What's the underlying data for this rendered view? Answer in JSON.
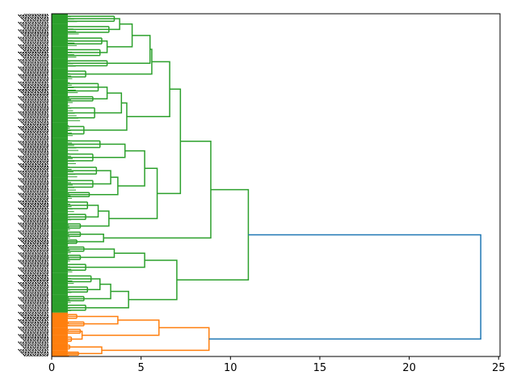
{
  "chart_data": {
    "type": "dendrogram",
    "title": "",
    "xlabel": "",
    "ylabel": "",
    "orientation": "right",
    "xlim": [
      0,
      25.08
    ],
    "xticks": [
      0,
      5,
      10,
      15,
      20,
      25
    ],
    "xtick_labels": [
      "0",
      "5",
      "10",
      "15",
      "20",
      "25"
    ],
    "leaf_labels_note": "illegible",
    "colors": {
      "above_threshold": "#1f77b4",
      "cluster_1": "#2ca02c",
      "cluster_2": "#ff7f0e",
      "leaf_label": "#000000"
    },
    "tree": {
      "h": 24.0,
      "color": "above_threshold",
      "c": [
        {
          "h": 11.0,
          "color": "cluster_1",
          "c": [
            {
              "h": 8.9,
              "c": [
                {
                  "h": 7.2,
                  "c": [
                    {
                      "h": 6.6,
                      "c": [
                        {
                          "h": 5.6,
                          "c": [
                            {
                              "h": 5.5,
                              "c": [
                                {
                                  "h": 4.5,
                                  "c": [
                                    {
                                      "h": 3.8,
                                      "c": [
                                        {
                                          "n": 12,
                                          "h": 3.5
                                        },
                                        {
                                          "n": 14,
                                          "h": 3.2
                                        }
                                      ]
                                    },
                                    {
                                      "h": 3.1,
                                      "c": [
                                        {
                                          "n": 14,
                                          "h": 2.8
                                        },
                                        {
                                          "n": 14,
                                          "h": 2.7
                                        }
                                      ]
                                    }
                                  ]
                                },
                                {
                                  "n": 12,
                                  "h": 3.1
                                }
                              ]
                            },
                            {
                              "n": 14,
                              "h": 1.9
                            }
                          ]
                        },
                        {
                          "h": 4.2,
                          "c": [
                            {
                              "h": 3.9,
                              "c": [
                                {
                                  "h": 3.1,
                                  "c": [
                                    {
                                      "n": 18,
                                      "h": 2.6
                                    },
                                    {
                                      "n": 10,
                                      "h": 2.3
                                    }
                                  ]
                                },
                                {
                                  "n": 24,
                                  "h": 2.4
                                }
                              ]
                            },
                            {
                              "n": 18,
                              "h": 1.8
                            }
                          ]
                        }
                      ]
                    },
                    {
                      "h": 5.9,
                      "c": [
                        {
                          "h": 5.2,
                          "c": [
                            {
                              "h": 4.1,
                              "c": [
                                {
                                  "n": 16,
                                  "h": 2.7
                                },
                                {
                                  "n": 16,
                                  "h": 2.3
                                }
                              ]
                            },
                            {
                              "h": 3.7,
                              "c": [
                                {
                                  "h": 3.3,
                                  "c": [
                                    {
                                      "n": 16,
                                      "h": 2.5
                                    },
                                    {
                                      "n": 16,
                                      "h": 2.3
                                    }
                                  ]
                                },
                                {
                                  "n": 10,
                                  "h": 2.1
                                }
                              ]
                            }
                          ]
                        },
                        {
                          "h": 3.2,
                          "c": [
                            {
                              "h": 2.6,
                              "c": [
                                {
                                  "n": 16,
                                  "h": 2.0
                                },
                                {
                                  "n": 12,
                                  "h": 1.9
                                }
                              ]
                            },
                            {
                              "n": 10,
                              "h": 1.6
                            }
                          ]
                        }
                      ]
                    }
                  ]
                },
                {
                  "h": 2.9,
                  "c": [
                    {
                      "n": 10,
                      "h": 1.6
                    },
                    {
                      "n": 8,
                      "h": 1.4
                    }
                  ]
                }
              ]
            },
            {
              "h": 7.0,
              "c": [
                {
                  "h": 5.2,
                  "c": [
                    {
                      "h": 3.5,
                      "c": [
                        {
                          "n": 10,
                          "h": 1.8
                        },
                        {
                          "n": 10,
                          "h": 1.6
                        }
                      ]
                    },
                    {
                      "n": 14,
                      "h": 1.9
                    }
                  ]
                },
                {
                  "h": 4.3,
                  "c": [
                    {
                      "h": 3.3,
                      "c": [
                        {
                          "h": 2.7,
                          "c": [
                            {
                              "n": 14,
                              "h": 2.2
                            },
                            {
                              "n": 12,
                              "h": 2.0
                            }
                          ]
                        },
                        {
                          "n": 10,
                          "h": 1.8
                        }
                      ]
                    },
                    {
                      "n": 12,
                      "h": 1.9
                    }
                  ]
                }
              ]
            }
          ]
        },
        {
          "h": 8.8,
          "color": "cluster_2",
          "c": [
            {
              "h": 6.0,
              "c": [
                {
                  "h": 3.7,
                  "c": [
                    {
                      "n": 9,
                      "h": 1.4
                    },
                    {
                      "n": 9,
                      "h": 1.8
                    }
                  ]
                },
                {
                  "h": 1.7,
                  "c": [
                    {
                      "n": 9,
                      "h": 1.6
                    },
                    {
                      "n": 10,
                      "h": 1.1
                    }
                  ]
                }
              ]
            },
            {
              "h": 2.8,
              "c": [
                {
                  "n": 9,
                  "h": 1.0
                },
                {
                  "n": 7,
                  "h": 1.5
                }
              ]
            }
          ]
        }
      ]
    }
  }
}
